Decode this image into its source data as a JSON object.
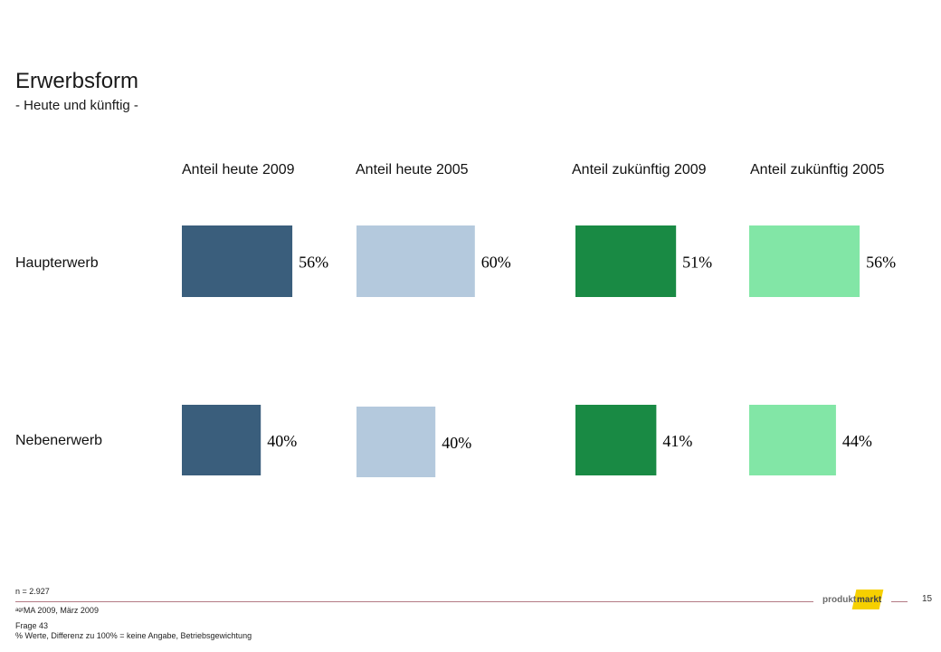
{
  "title": "Erwerbsform",
  "subtitle": "- Heute und künftig -",
  "chart_data": {
    "type": "bar",
    "orientation": "horizontal",
    "categories": [
      "Haupterwerb",
      "Nebenerwerb"
    ],
    "series": [
      {
        "name": "Anteil heute 2009",
        "values": [
          56,
          40
        ],
        "color": "#3a5e7c",
        "labels": [
          "56%",
          "40%"
        ]
      },
      {
        "name": "Anteil heute 2005",
        "values": [
          60,
          40
        ],
        "color": "#b4c9dd",
        "labels": [
          "60%",
          "40%"
        ]
      },
      {
        "name": "Anteil zukünftig 2009",
        "values": [
          51,
          41
        ],
        "color": "#198a44",
        "labels": [
          "51%",
          "41%"
        ]
      },
      {
        "name": "Anteil zukünftig 2005",
        "values": [
          56,
          44
        ],
        "color": "#82e6a6",
        "labels": [
          "56%",
          "44%"
        ]
      }
    ],
    "value_unit": "%"
  },
  "footer": {
    "n": "n = 2.927",
    "source": "ᵃᵍʳMA 2009, März 2009",
    "question": "Frage 43",
    "note": "% Werte, Differenz zu 100% = keine Angabe, Betriebsgewichtung",
    "page_number": "15",
    "logo_left": "produkt",
    "logo_right": "markt"
  }
}
